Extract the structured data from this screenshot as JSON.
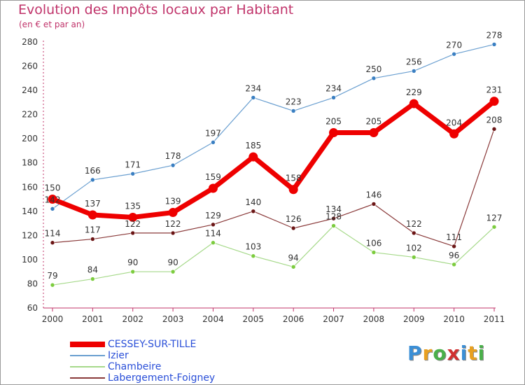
{
  "chart_data": {
    "type": "line",
    "title": "Evolution des Impôts locaux par Habitant",
    "subtitle": "(en € et par an)",
    "x": [
      "2000",
      "2001",
      "2002",
      "2003",
      "2004",
      "2005",
      "2006",
      "2007",
      "2008",
      "2009",
      "2010",
      "2011"
    ],
    "ylim": [
      60,
      280
    ],
    "yticks": [
      60,
      80,
      100,
      120,
      140,
      160,
      180,
      200,
      220,
      240,
      260,
      280
    ],
    "grid": false,
    "legend_position": "bottom-left",
    "series": [
      {
        "name": "Izier",
        "color": "#6a9fd0",
        "marker": "#3a7fc2",
        "width": 1.2,
        "values": [
          142,
          166,
          171,
          178,
          197,
          234,
          223,
          234,
          250,
          256,
          270,
          278
        ],
        "labels": [
          "142",
          "166",
          "171",
          "178",
          "197",
          "234",
          "223",
          "234",
          "250",
          "256",
          "270",
          "278"
        ]
      },
      {
        "name": "Chambeire",
        "color": "#a6d98a",
        "marker": "#7ccc3e",
        "width": 1.2,
        "values": [
          79,
          84,
          90,
          90,
          114,
          103,
          94,
          128,
          106,
          102,
          96,
          127
        ],
        "labels": [
          "79",
          "84",
          "90",
          "90",
          "114",
          "103",
          "94",
          "128",
          "106",
          "102",
          "96",
          "127"
        ]
      },
      {
        "name": "Labergement-Foigney",
        "color": "#8a3a3a",
        "marker": "#6b1515",
        "width": 1.2,
        "values": [
          114,
          117,
          122,
          122,
          129,
          140,
          126,
          134,
          146,
          122,
          111,
          208
        ],
        "labels": [
          "114",
          "117",
          "122",
          "122",
          "129",
          "140",
          "126",
          "134",
          "146",
          "122",
          "111",
          "208"
        ]
      },
      {
        "name": "CESSEY-SUR-TILLE",
        "color": "#ee0000",
        "marker": "#ee0000",
        "width": 7,
        "values": [
          150,
          137,
          135,
          139,
          159,
          185,
          158,
          205,
          205,
          229,
          204,
          231
        ],
        "labels": [
          "150",
          "137",
          "135",
          "139",
          "159",
          "185",
          "158",
          "205",
          "205",
          "229",
          "204",
          "231"
        ]
      }
    ],
    "legend_order": [
      "CESSEY-SUR-TILLE",
      "Izier",
      "Chambeire",
      "Labergement-Foigney"
    ]
  },
  "logo": {
    "letters": [
      "P",
      "r",
      "o",
      "x",
      "i",
      "t",
      "i"
    ],
    "colors": [
      "#3b8fd6",
      "#e8a020",
      "#4ab04a",
      "#d03030",
      "#3b8fd6",
      "#e8a020",
      "#4ab04a"
    ]
  }
}
